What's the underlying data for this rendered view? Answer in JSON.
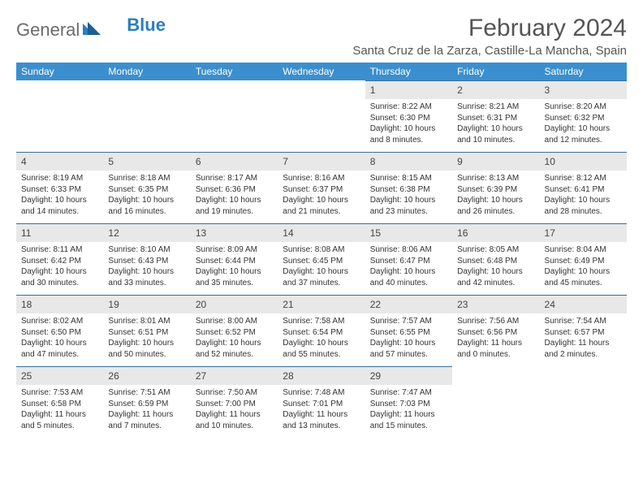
{
  "brand": {
    "text1": "General",
    "text2": "Blue"
  },
  "title": "February 2024",
  "location": "Santa Cruz de la Zarza, Castille-La Mancha, Spain",
  "colors": {
    "header_bg": "#3b8fce",
    "header_text": "#ffffff",
    "daynum_bg": "#e8e8e8",
    "daynum_border": "#3b6f9a",
    "body_text": "#333333",
    "title_text": "#555555",
    "logo_gray": "#6b6b6b",
    "logo_blue": "#2a7fbf",
    "page_bg": "#ffffff"
  },
  "day_headers": [
    "Sunday",
    "Monday",
    "Tuesday",
    "Wednesday",
    "Thursday",
    "Friday",
    "Saturday"
  ],
  "labels": {
    "sunrise": "Sunrise:",
    "sunset": "Sunset:",
    "daylight": "Daylight:"
  },
  "weeks": [
    [
      null,
      null,
      null,
      null,
      {
        "n": "1",
        "sunrise": "8:22 AM",
        "sunset": "6:30 PM",
        "daylight": "10 hours and 8 minutes."
      },
      {
        "n": "2",
        "sunrise": "8:21 AM",
        "sunset": "6:31 PM",
        "daylight": "10 hours and 10 minutes."
      },
      {
        "n": "3",
        "sunrise": "8:20 AM",
        "sunset": "6:32 PM",
        "daylight": "10 hours and 12 minutes."
      }
    ],
    [
      {
        "n": "4",
        "sunrise": "8:19 AM",
        "sunset": "6:33 PM",
        "daylight": "10 hours and 14 minutes."
      },
      {
        "n": "5",
        "sunrise": "8:18 AM",
        "sunset": "6:35 PM",
        "daylight": "10 hours and 16 minutes."
      },
      {
        "n": "6",
        "sunrise": "8:17 AM",
        "sunset": "6:36 PM",
        "daylight": "10 hours and 19 minutes."
      },
      {
        "n": "7",
        "sunrise": "8:16 AM",
        "sunset": "6:37 PM",
        "daylight": "10 hours and 21 minutes."
      },
      {
        "n": "8",
        "sunrise": "8:15 AM",
        "sunset": "6:38 PM",
        "daylight": "10 hours and 23 minutes."
      },
      {
        "n": "9",
        "sunrise": "8:13 AM",
        "sunset": "6:39 PM",
        "daylight": "10 hours and 26 minutes."
      },
      {
        "n": "10",
        "sunrise": "8:12 AM",
        "sunset": "6:41 PM",
        "daylight": "10 hours and 28 minutes."
      }
    ],
    [
      {
        "n": "11",
        "sunrise": "8:11 AM",
        "sunset": "6:42 PM",
        "daylight": "10 hours and 30 minutes."
      },
      {
        "n": "12",
        "sunrise": "8:10 AM",
        "sunset": "6:43 PM",
        "daylight": "10 hours and 33 minutes."
      },
      {
        "n": "13",
        "sunrise": "8:09 AM",
        "sunset": "6:44 PM",
        "daylight": "10 hours and 35 minutes."
      },
      {
        "n": "14",
        "sunrise": "8:08 AM",
        "sunset": "6:45 PM",
        "daylight": "10 hours and 37 minutes."
      },
      {
        "n": "15",
        "sunrise": "8:06 AM",
        "sunset": "6:47 PM",
        "daylight": "10 hours and 40 minutes."
      },
      {
        "n": "16",
        "sunrise": "8:05 AM",
        "sunset": "6:48 PM",
        "daylight": "10 hours and 42 minutes."
      },
      {
        "n": "17",
        "sunrise": "8:04 AM",
        "sunset": "6:49 PM",
        "daylight": "10 hours and 45 minutes."
      }
    ],
    [
      {
        "n": "18",
        "sunrise": "8:02 AM",
        "sunset": "6:50 PM",
        "daylight": "10 hours and 47 minutes."
      },
      {
        "n": "19",
        "sunrise": "8:01 AM",
        "sunset": "6:51 PM",
        "daylight": "10 hours and 50 minutes."
      },
      {
        "n": "20",
        "sunrise": "8:00 AM",
        "sunset": "6:52 PM",
        "daylight": "10 hours and 52 minutes."
      },
      {
        "n": "21",
        "sunrise": "7:58 AM",
        "sunset": "6:54 PM",
        "daylight": "10 hours and 55 minutes."
      },
      {
        "n": "22",
        "sunrise": "7:57 AM",
        "sunset": "6:55 PM",
        "daylight": "10 hours and 57 minutes."
      },
      {
        "n": "23",
        "sunrise": "7:56 AM",
        "sunset": "6:56 PM",
        "daylight": "11 hours and 0 minutes."
      },
      {
        "n": "24",
        "sunrise": "7:54 AM",
        "sunset": "6:57 PM",
        "daylight": "11 hours and 2 minutes."
      }
    ],
    [
      {
        "n": "25",
        "sunrise": "7:53 AM",
        "sunset": "6:58 PM",
        "daylight": "11 hours and 5 minutes."
      },
      {
        "n": "26",
        "sunrise": "7:51 AM",
        "sunset": "6:59 PM",
        "daylight": "11 hours and 7 minutes."
      },
      {
        "n": "27",
        "sunrise": "7:50 AM",
        "sunset": "7:00 PM",
        "daylight": "11 hours and 10 minutes."
      },
      {
        "n": "28",
        "sunrise": "7:48 AM",
        "sunset": "7:01 PM",
        "daylight": "11 hours and 13 minutes."
      },
      {
        "n": "29",
        "sunrise": "7:47 AM",
        "sunset": "7:03 PM",
        "daylight": "11 hours and 15 minutes."
      },
      null,
      null
    ]
  ]
}
